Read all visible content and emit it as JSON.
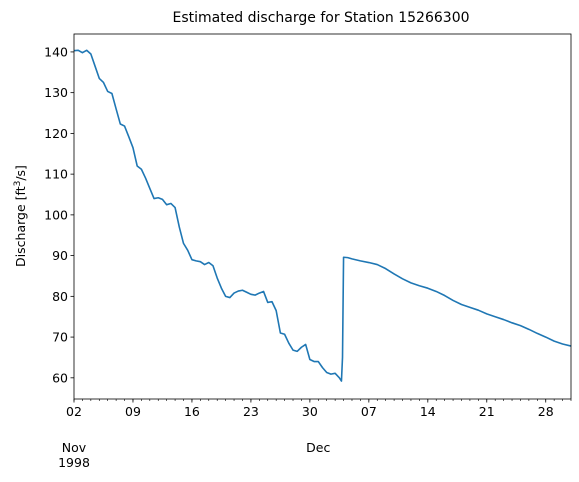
{
  "chart_data": {
    "type": "line",
    "title": "Estimated discharge for Station 15266300",
    "xlabel": "",
    "ylabel": {
      "prefix": "Discharge [ft",
      "sup": "3",
      "suffix": "/s]"
    },
    "xlim": [
      "1998-11-02",
      "1998-12-31"
    ],
    "ylim": [
      54.8,
      144.4
    ],
    "grid": false,
    "legend": "none",
    "colors": {
      "line": "#1f77b4",
      "axes": "#000000",
      "background": "#ffffff"
    },
    "y_ticks": [
      60,
      70,
      80,
      90,
      100,
      110,
      120,
      130,
      140
    ],
    "x_major_ticks": [
      {
        "date": "1998-11-02",
        "label": "02"
      },
      {
        "date": "1998-11-09",
        "label": "09"
      },
      {
        "date": "1998-11-16",
        "label": "16"
      },
      {
        "date": "1998-11-23",
        "label": "23"
      },
      {
        "date": "1998-11-30",
        "label": "30"
      },
      {
        "date": "1998-12-07",
        "label": "07"
      },
      {
        "date": "1998-12-14",
        "label": "14"
      },
      {
        "date": "1998-12-21",
        "label": "21"
      },
      {
        "date": "1998-12-28",
        "label": "28"
      }
    ],
    "x_group_labels": [
      {
        "date": "1998-11-02",
        "lines": [
          "Nov",
          "1998"
        ]
      },
      {
        "date": "1998-12-01",
        "lines": [
          "Dec"
        ]
      }
    ],
    "series": [
      {
        "points": [
          [
            "1998-11-02 00:00",
            140.3
          ],
          [
            "1998-11-02 12:00",
            140.4
          ],
          [
            "1998-11-03 00:00",
            139.8
          ],
          [
            "1998-11-03 12:00",
            140.4
          ],
          [
            "1998-11-04 00:00",
            139.5
          ],
          [
            "1998-11-04 12:00",
            136.5
          ],
          [
            "1998-11-05 00:00",
            133.5
          ],
          [
            "1998-11-05 12:00",
            132.5
          ],
          [
            "1998-11-06 00:00",
            130.3
          ],
          [
            "1998-11-06 12:00",
            129.8
          ],
          [
            "1998-11-07 00:00",
            126.0
          ],
          [
            "1998-11-07 12:00",
            122.3
          ],
          [
            "1998-11-08 00:00",
            121.8
          ],
          [
            "1998-11-08 12:00",
            119.2
          ],
          [
            "1998-11-09 00:00",
            116.5
          ],
          [
            "1998-11-09 12:00",
            112.0
          ],
          [
            "1998-11-10 00:00",
            111.2
          ],
          [
            "1998-11-10 12:00",
            109.0
          ],
          [
            "1998-11-11 00:00",
            106.5
          ],
          [
            "1998-11-11 12:00",
            104.0
          ],
          [
            "1998-11-12 00:00",
            104.2
          ],
          [
            "1998-11-12 12:00",
            103.8
          ],
          [
            "1998-11-13 00:00",
            102.5
          ],
          [
            "1998-11-13 12:00",
            102.8
          ],
          [
            "1998-11-14 00:00",
            101.8
          ],
          [
            "1998-11-14 12:00",
            97.0
          ],
          [
            "1998-11-15 00:00",
            93.0
          ],
          [
            "1998-11-15 12:00",
            91.3
          ],
          [
            "1998-11-16 00:00",
            89.0
          ],
          [
            "1998-11-16 12:00",
            88.7
          ],
          [
            "1998-11-17 00:00",
            88.5
          ],
          [
            "1998-11-17 12:00",
            87.8
          ],
          [
            "1998-11-18 00:00",
            88.3
          ],
          [
            "1998-11-18 12:00",
            87.5
          ],
          [
            "1998-11-19 00:00",
            84.5
          ],
          [
            "1998-11-19 12:00",
            82.0
          ],
          [
            "1998-11-20 00:00",
            80.0
          ],
          [
            "1998-11-20 12:00",
            79.7
          ],
          [
            "1998-11-21 00:00",
            80.8
          ],
          [
            "1998-11-21 12:00",
            81.3
          ],
          [
            "1998-11-22 00:00",
            81.5
          ],
          [
            "1998-11-22 12:00",
            81.0
          ],
          [
            "1998-11-23 00:00",
            80.5
          ],
          [
            "1998-11-23 12:00",
            80.3
          ],
          [
            "1998-11-24 00:00",
            80.8
          ],
          [
            "1998-11-24 12:00",
            81.2
          ],
          [
            "1998-11-25 00:00",
            78.5
          ],
          [
            "1998-11-25 12:00",
            78.7
          ],
          [
            "1998-11-26 00:00",
            76.5
          ],
          [
            "1998-11-26 12:00",
            71.0
          ],
          [
            "1998-11-27 00:00",
            70.7
          ],
          [
            "1998-11-27 12:00",
            68.5
          ],
          [
            "1998-11-28 00:00",
            66.8
          ],
          [
            "1998-11-28 12:00",
            66.5
          ],
          [
            "1998-11-29 00:00",
            67.5
          ],
          [
            "1998-11-29 12:00",
            68.2
          ],
          [
            "1998-11-30 00:00",
            64.5
          ],
          [
            "1998-11-30 12:00",
            64.0
          ],
          [
            "1998-12-01 00:00",
            64.0
          ],
          [
            "1998-12-01 12:00",
            62.5
          ],
          [
            "1998-12-02 00:00",
            61.3
          ],
          [
            "1998-12-02 12:00",
            60.9
          ],
          [
            "1998-12-03 00:00",
            61.1
          ],
          [
            "1998-12-03 12:00",
            60.0
          ],
          [
            "1998-12-03 18:00",
            59.2
          ],
          [
            "1998-12-03 21:00",
            65.0
          ],
          [
            "1998-12-04 00:00",
            89.6
          ],
          [
            "1998-12-04 12:00",
            89.5
          ],
          [
            "1998-12-05 00:00",
            89.2
          ],
          [
            "1998-12-06 00:00",
            88.7
          ],
          [
            "1998-12-07 00:00",
            88.3
          ],
          [
            "1998-12-08 00:00",
            87.8
          ],
          [
            "1998-12-09 00:00",
            86.8
          ],
          [
            "1998-12-10 00:00",
            85.5
          ],
          [
            "1998-12-11 00:00",
            84.3
          ],
          [
            "1998-12-12 00:00",
            83.3
          ],
          [
            "1998-12-13 00:00",
            82.6
          ],
          [
            "1998-12-14 00:00",
            82.0
          ],
          [
            "1998-12-15 00:00",
            81.2
          ],
          [
            "1998-12-16 00:00",
            80.2
          ],
          [
            "1998-12-17 00:00",
            79.0
          ],
          [
            "1998-12-18 00:00",
            78.0
          ],
          [
            "1998-12-19 00:00",
            77.3
          ],
          [
            "1998-12-20 00:00",
            76.6
          ],
          [
            "1998-12-21 00:00",
            75.7
          ],
          [
            "1998-12-22 00:00",
            75.0
          ],
          [
            "1998-12-23 00:00",
            74.3
          ],
          [
            "1998-12-24 00:00",
            73.5
          ],
          [
            "1998-12-25 00:00",
            72.8
          ],
          [
            "1998-12-26 00:00",
            71.9
          ],
          [
            "1998-12-27 00:00",
            70.9
          ],
          [
            "1998-12-28 00:00",
            70.0
          ],
          [
            "1998-12-29 00:00",
            69.0
          ],
          [
            "1998-12-30 00:00",
            68.3
          ],
          [
            "1998-12-31 00:00",
            67.8
          ]
        ]
      }
    ]
  }
}
